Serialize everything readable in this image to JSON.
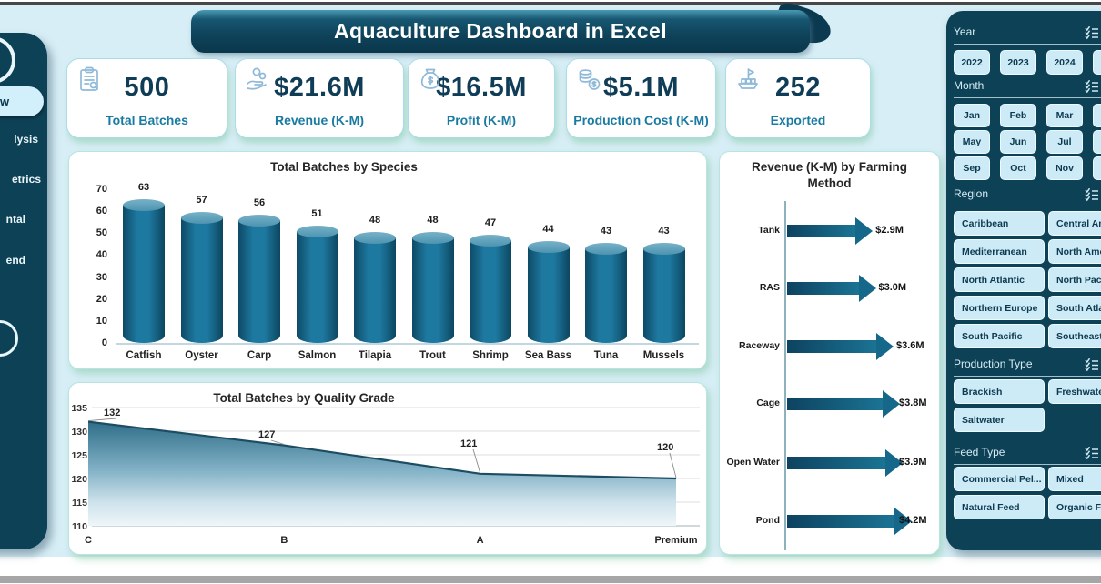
{
  "title_banner": "Aquaculture Dashboard in Excel",
  "sidebar": {
    "items": [
      {
        "label": "w",
        "selected": true
      },
      {
        "label": "lysis",
        "selected": false
      },
      {
        "label": "etrics",
        "selected": false
      },
      {
        "label": "ntal",
        "selected": false
      },
      {
        "label": "end",
        "selected": false
      }
    ]
  },
  "kpis": [
    {
      "icon": "clipboard-icon",
      "value": "500",
      "label": "Total Batches"
    },
    {
      "icon": "hand-coins-icon",
      "value": "$21.6M",
      "label": "Revenue (K-M)"
    },
    {
      "icon": "money-bag-icon",
      "value": "$16.5M",
      "label": "Profit (K-M)"
    },
    {
      "icon": "cost-coins-icon",
      "value": "$5.1M",
      "label": "Production Cost (K-M)"
    },
    {
      "icon": "export-ship-icon",
      "value": "252",
      "label": "Exported"
    }
  ],
  "chart_data": [
    {
      "type": "bar",
      "style": "3d-cylinder",
      "title": "Total Batches by Species",
      "categories": [
        "Catfish",
        "Oyster",
        "Carp",
        "Salmon",
        "Tilapia",
        "Trout",
        "Shrimp",
        "Sea Bass",
        "Tuna",
        "Mussels"
      ],
      "values": [
        63,
        57,
        56,
        51,
        48,
        48,
        47,
        44,
        43,
        43
      ],
      "xlabel": "",
      "ylabel": "",
      "ylim": [
        0,
        70
      ],
      "ytick_step": 10,
      "grid": false,
      "bar_color": "#1b6e92"
    },
    {
      "type": "area",
      "title": "Total Batches by Quality Grade",
      "categories": [
        "C",
        "B",
        "A",
        "Premium"
      ],
      "values": [
        132,
        127,
        121,
        120
      ],
      "xlabel": "",
      "ylabel": "",
      "ylim": [
        110,
        135
      ],
      "ytick_step": 5,
      "grid": true,
      "line_color": "#1d4d62"
    },
    {
      "type": "bar",
      "orientation": "horizontal",
      "style": "arrow",
      "title": "Revenue (K-M) by Farming Method",
      "categories": [
        "Tank",
        "RAS",
        "Raceway",
        "Cage",
        "Open Water",
        "Pond"
      ],
      "values": [
        2.9,
        3.0,
        3.6,
        3.8,
        3.9,
        4.2
      ],
      "value_labels": [
        "$2.9M",
        "$3.0M",
        "$3.6M",
        "$3.8M",
        "$3.9M",
        "$4.2M"
      ],
      "arrow_color": "#15688a"
    }
  ],
  "filters": {
    "year": {
      "label": "Year",
      "options": [
        "2022",
        "2023",
        "2024",
        ""
      ]
    },
    "month": {
      "label": "Month",
      "options": [
        "Jan",
        "Feb",
        "Mar",
        "",
        "May",
        "Jun",
        "Jul",
        "",
        "Sep",
        "Oct",
        "Nov",
        ""
      ]
    },
    "region": {
      "label": "Region",
      "options": [
        "Caribbean",
        "Central Ame",
        "Mediterranean",
        "North Amer",
        "North Atlantic",
        "North Pacifi",
        "Northern Europe",
        "South Atlan",
        "South Pacific",
        "Southeast A"
      ]
    },
    "production_type": {
      "label": "Production Type",
      "options": [
        "Brackish",
        "Freshwater",
        "Saltwater"
      ]
    },
    "feed_type": {
      "label": "Feed Type",
      "options": [
        "Commercial Pel...",
        "Mixed",
        "Natural Feed",
        "Organic Feed"
      ]
    }
  },
  "colors": {
    "panel_dark": "#0d4156",
    "background": "#d7eef6",
    "card_glow": "#7dc8a0",
    "bar_teal": "#1b6e92",
    "kpi_value": "#0f3c56",
    "kpi_label": "#1a7ba2",
    "slicer_button_bg": "#cdeaf7"
  }
}
